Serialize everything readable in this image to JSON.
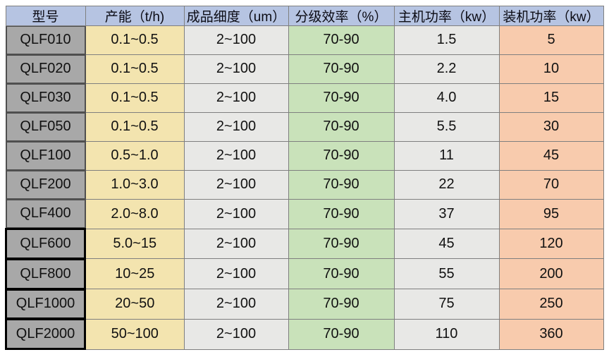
{
  "table": {
    "header_bg": "#b6c4e2",
    "grid_border_color": "#7f7f7f",
    "model_border_color": "#4f4f4f",
    "model_border_heavy_color": "#000000",
    "columns": [
      {
        "key": "model",
        "label": "型号",
        "bg": "#a8a8a8"
      },
      {
        "key": "capacity",
        "label": "产能（t/h)",
        "bg": "#f3e4af"
      },
      {
        "key": "fineness",
        "label": "成品细度（um）",
        "bg": "#e8e8e6"
      },
      {
        "key": "efficiency",
        "label": "分级效率（%）",
        "bg": "#c9e2ba"
      },
      {
        "key": "main_power",
        "label": "主机功率（kw）",
        "bg": "#e8e8e6"
      },
      {
        "key": "installed_power",
        "label": "装机功率（kw）",
        "bg": "#f8cbad"
      }
    ],
    "rows": [
      [
        "QLF010",
        "0.1~0.5",
        "2~100",
        "70-90",
        "1.5",
        "5"
      ],
      [
        "QLF020",
        "0.1~0.5",
        "2~100",
        "70-90",
        "2.2",
        "10"
      ],
      [
        "QLF030",
        "0.1~0.5",
        "2~100",
        "70-90",
        "4.0",
        "15"
      ],
      [
        "QLF050",
        "0.1~0.5",
        "2~100",
        "70-90",
        "5.5",
        "30"
      ],
      [
        "QLF100",
        "0.5~1.0",
        "2~100",
        "70-90",
        "11",
        "45"
      ],
      [
        "QLF200",
        "1.0~3.0",
        "2~100",
        "70-90",
        "22",
        "70"
      ],
      [
        "QLF400",
        "2.0~8.0",
        "2~100",
        "70-90",
        "37",
        "95"
      ],
      [
        "QLF600",
        "5.0~15",
        "2~100",
        "70-90",
        "45",
        "120"
      ],
      [
        "QLF800",
        "10~25",
        "2~100",
        "70-90",
        "55",
        "200"
      ],
      [
        "QLF1000",
        "20~50",
        "2~100",
        "70-90",
        "75",
        "250"
      ],
      [
        "QLF2000",
        "50~100",
        "2~100",
        "70-90",
        "110",
        "360"
      ]
    ],
    "heavy_border_first_row_index": 7
  }
}
